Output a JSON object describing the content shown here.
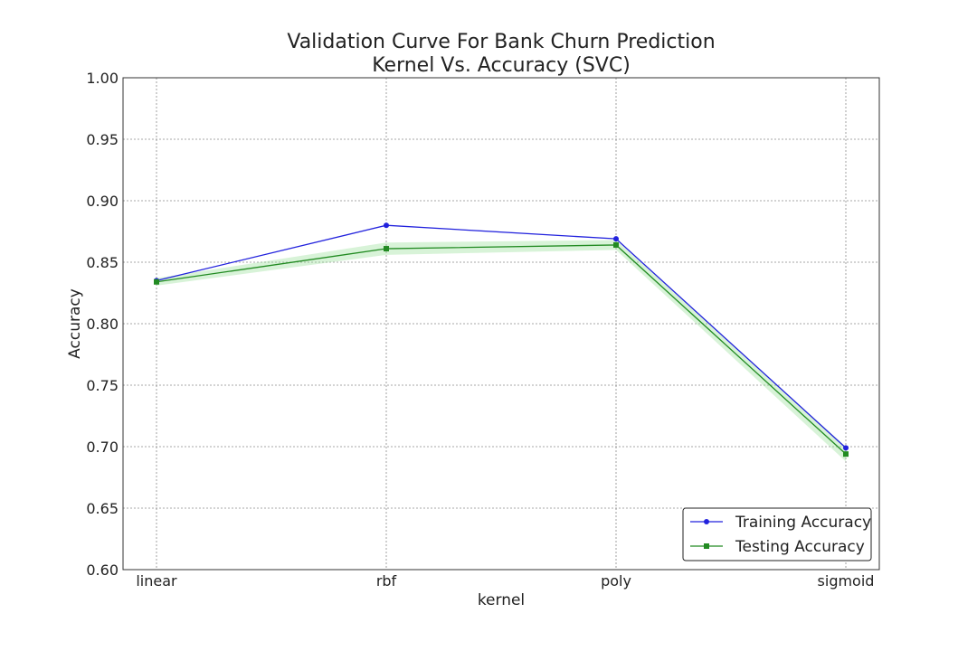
{
  "chart_data": {
    "type": "line",
    "title": "Validation Curve For Bank Churn Prediction",
    "subtitle": "Kernel Vs. Accuracy (SVC)",
    "xlabel": "kernel",
    "ylabel": "Accuracy",
    "categories": [
      "linear",
      "rbf",
      "poly",
      "sigmoid"
    ],
    "ylim": [
      0.6,
      1.0
    ],
    "yticks": [
      0.6,
      0.65,
      0.7,
      0.75,
      0.8,
      0.85,
      0.9,
      0.95,
      1.0
    ],
    "ytick_labels": [
      "0.60",
      "0.65",
      "0.70",
      "0.75",
      "0.80",
      "0.85",
      "0.90",
      "0.95",
      "1.00"
    ],
    "grid": true,
    "legend_position": "lower-right",
    "series": [
      {
        "name": "Training Accuracy",
        "values": [
          0.835,
          0.88,
          0.869,
          0.699
        ],
        "color": "#2222dd",
        "marker": "circle"
      },
      {
        "name": "Testing Accuracy",
        "values": [
          0.834,
          0.861,
          0.864,
          0.694
        ],
        "band_lower": [
          0.831,
          0.856,
          0.86,
          0.688
        ],
        "band_upper": [
          0.837,
          0.866,
          0.868,
          0.7
        ],
        "color": "#228B22",
        "band_color": "#90dd90",
        "marker": "square"
      }
    ]
  }
}
